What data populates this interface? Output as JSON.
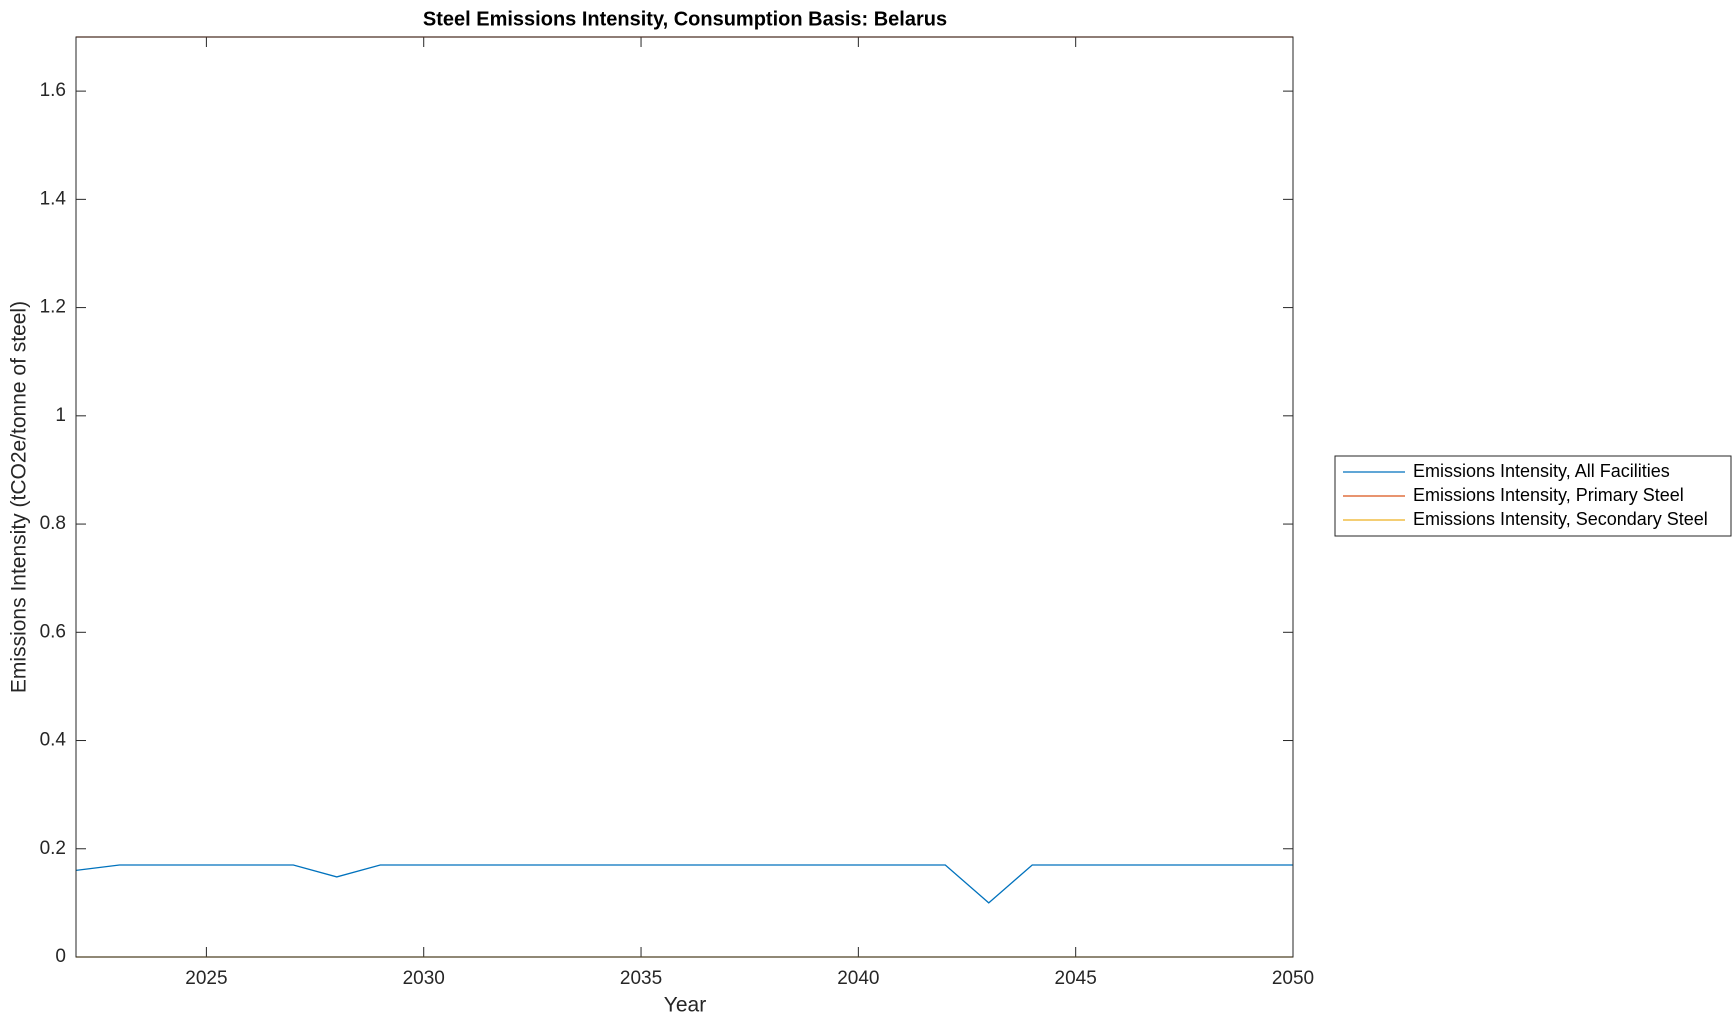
{
  "chart_data": {
    "type": "line",
    "title": "Steel Emissions Intensity, Consumption Basis: Belarus",
    "x_label": "Year",
    "y_label": "Emissions Intensity (tCO2e/tonne of steel)",
    "x": [
      2022,
      2023,
      2024,
      2025,
      2026,
      2027,
      2028,
      2029,
      2030,
      2031,
      2032,
      2033,
      2034,
      2035,
      2036,
      2037,
      2038,
      2039,
      2040,
      2041,
      2042,
      2043,
      2044,
      2045,
      2046,
      2047,
      2048,
      2049,
      2050
    ],
    "series": [
      {
        "name": "Emissions Intensity, All Facilities",
        "color": "#0072bd",
        "values": [
          0.16,
          0.17,
          0.17,
          0.17,
          0.17,
          0.17,
          0.148,
          0.17,
          0.17,
          0.17,
          0.17,
          0.17,
          0.17,
          0.17,
          0.17,
          0.17,
          0.17,
          0.17,
          0.17,
          0.17,
          0.17,
          0.1,
          0.17,
          0.17,
          0.17,
          0.17,
          0.17,
          0.17,
          0.17
        ]
      },
      {
        "name": "Emissions Intensity, Primary Steel",
        "color": "#d95319",
        "values": [
          1.7,
          1.7,
          1.7,
          1.7,
          1.7,
          1.7,
          1.7,
          1.7,
          1.7,
          1.7,
          1.7,
          1.7,
          1.7,
          1.7,
          1.7,
          1.7,
          1.7,
          1.7,
          1.7,
          1.7,
          1.7,
          1.7,
          1.7,
          1.7,
          1.7,
          1.7,
          1.7,
          1.7,
          1.7
        ]
      },
      {
        "name": "Emissions Intensity, Secondary Steel",
        "color": "#edb120",
        "values": [
          0,
          0,
          0,
          0,
          0,
          0,
          0,
          0,
          0,
          0,
          0,
          0,
          0,
          0,
          0,
          0,
          0,
          0,
          0,
          0,
          0,
          0,
          0,
          0,
          0,
          0,
          0,
          0,
          0
        ]
      }
    ],
    "xlim": [
      2022,
      2050
    ],
    "xticks": [
      2025,
      2030,
      2035,
      2040,
      2045,
      2050
    ],
    "ylim": [
      0,
      1.7
    ],
    "yticks": [
      0,
      0.2,
      0.4,
      0.6,
      0.8,
      1,
      1.2,
      1.4,
      1.6
    ],
    "grid": false,
    "legend": "outside-right"
  }
}
